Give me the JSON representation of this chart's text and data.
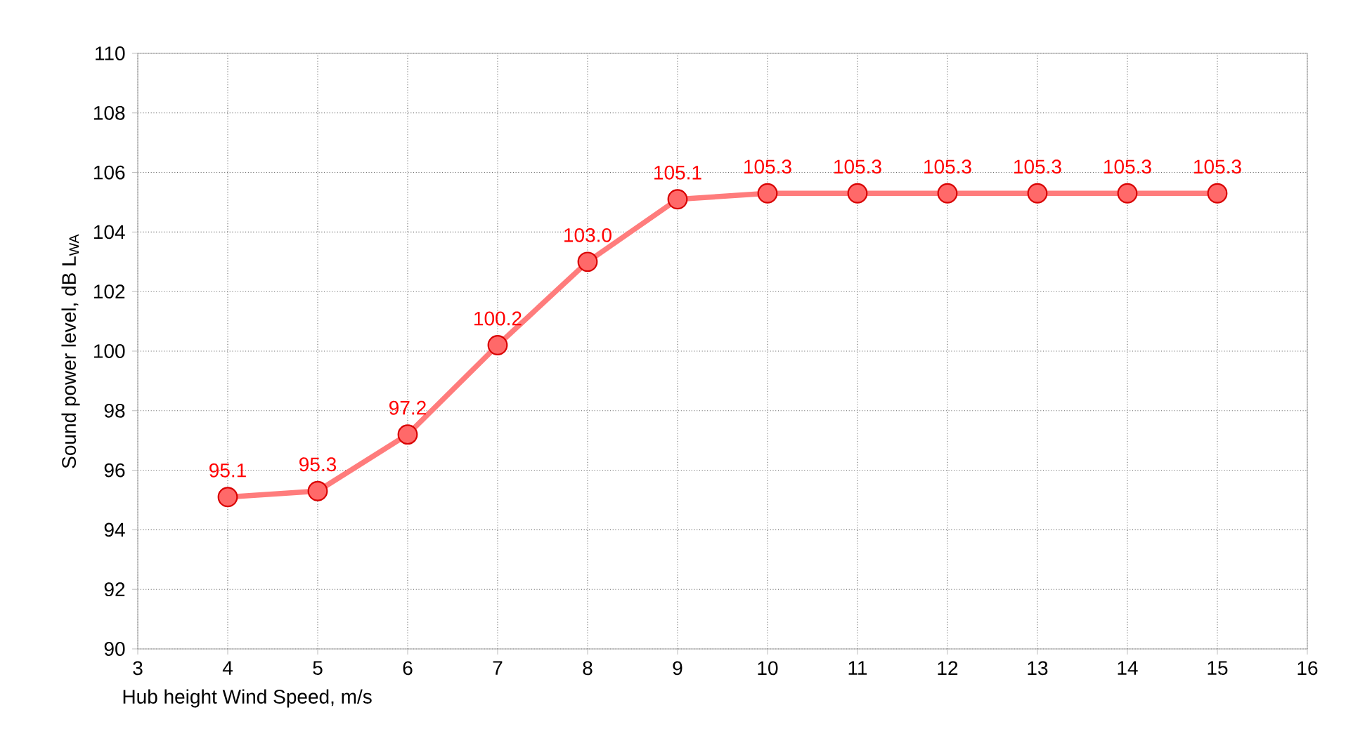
{
  "chart_data": {
    "type": "line",
    "xlabel": "Hub height Wind Speed, m/s",
    "ylabel": "Sound power level, dB L$_{WA}$",
    "x": [
      4,
      5,
      6,
      7,
      8,
      9,
      10,
      11,
      12,
      13,
      14,
      15
    ],
    "series": [
      {
        "color": "#ff7c7c",
        "values": [
          95.1,
          95.3,
          97.2,
          100.2,
          103.0,
          105.1,
          105.3,
          105.3,
          105.3,
          105.3,
          105.3,
          105.3
        ],
        "value_labels": [
          "95.1",
          "95.3",
          "97.2",
          "100.2",
          "103.0",
          "105.1",
          "105.3",
          "105.3",
          "105.3",
          "105.3",
          "105.3",
          "105.3"
        ]
      }
    ],
    "xlim": [
      3,
      16
    ],
    "xticks": [
      3,
      4,
      5,
      6,
      7,
      8,
      9,
      10,
      11,
      12,
      13,
      14,
      15,
      16
    ],
    "ylim": [
      90,
      110
    ],
    "yticks": [
      90,
      92,
      94,
      96,
      98,
      100,
      102,
      104,
      106,
      108,
      110
    ],
    "grid": true,
    "marker": "circle",
    "line_style": "solid"
  }
}
